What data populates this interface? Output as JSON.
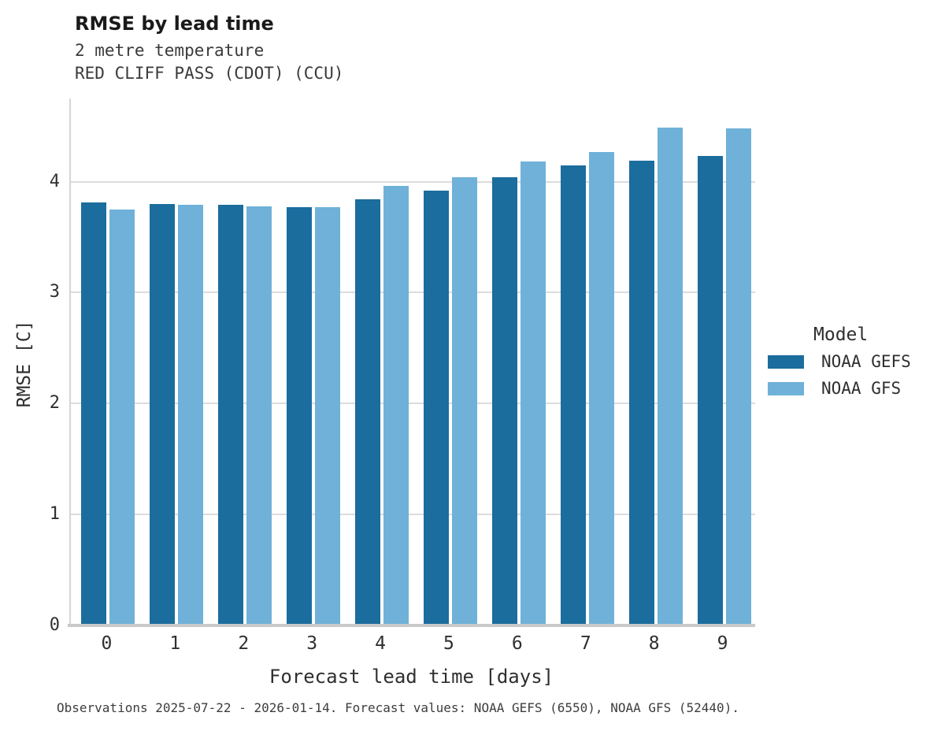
{
  "chart_data": {
    "type": "bar",
    "title": "RMSE by lead time",
    "subtitle_line1": "2 metre temperature",
    "subtitle_line2": "RED CLIFF PASS (CDOT) (CCU)",
    "xlabel": "Forecast lead time [days]",
    "ylabel": "RMSE [C]",
    "legend_title": "Model",
    "legend_position": "right",
    "grid": "horizontal",
    "caption": "Observations 2025-07-22 - 2026-01-14. Forecast values: NOAA GEFS (6550), NOAA GFS (52440).",
    "categories": [
      "0",
      "1",
      "2",
      "3",
      "4",
      "5",
      "6",
      "7",
      "8",
      "9"
    ],
    "yticks": [
      0,
      1,
      2,
      3,
      4
    ],
    "ylim": [
      0,
      4.75
    ],
    "series": [
      {
        "name": "NOAA GEFS",
        "color": "#1b6d9d",
        "values": [
          3.81,
          3.8,
          3.79,
          3.77,
          3.84,
          3.92,
          4.04,
          4.15,
          4.19,
          4.23
        ]
      },
      {
        "name": "NOAA GFS",
        "color": "#6fb1d8",
        "values": [
          3.75,
          3.79,
          3.78,
          3.77,
          3.96,
          4.04,
          4.18,
          4.27,
          4.49,
          4.48
        ]
      }
    ]
  }
}
